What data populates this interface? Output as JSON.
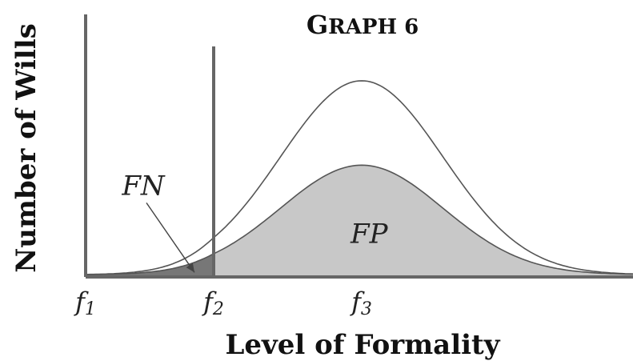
{
  "chart_data": {
    "type": "area",
    "title": "GRAPH 6",
    "title_display": {
      "first": "G",
      "rest": "RAPH 6"
    },
    "xlabel": "Level of Formality",
    "ylabel": "Number of Wills",
    "x_ticks": [
      {
        "base": "f",
        "sub": "1",
        "x": 1
      },
      {
        "base": "f",
        "sub": "2",
        "x": 2
      },
      {
        "base": "f",
        "sub": "3",
        "x": 3
      }
    ],
    "xlim": [
      1,
      5.3
    ],
    "ylim": [
      0,
      1
    ],
    "series": [
      {
        "mean": 3,
        "sd": 0.55,
        "peak": 0.85,
        "fill": "none",
        "stroke": "#555555"
      },
      {
        "mean": 3,
        "sd": 0.55,
        "peak": 0.48,
        "fill": "#c8c8c8",
        "stroke": "#555555"
      }
    ],
    "thresholds": [
      1,
      2
    ],
    "shaded_regions": [
      {
        "label": "FN",
        "from": 1,
        "to": 2,
        "fill": "#777777",
        "label_x": 1.45,
        "label_y": 0.36,
        "arrow_to_x": 1.85,
        "arrow_to_y": 0.02
      },
      {
        "label": "FP",
        "from": 2,
        "to": 5.3,
        "fill": "#c8c8c8",
        "label_x": 3.05,
        "label_y": 0.15
      }
    ],
    "colors": {
      "axis": "#666666",
      "curve": "#555555",
      "fp_fill": "#c8c8c8",
      "fn_fill": "#777777"
    }
  }
}
